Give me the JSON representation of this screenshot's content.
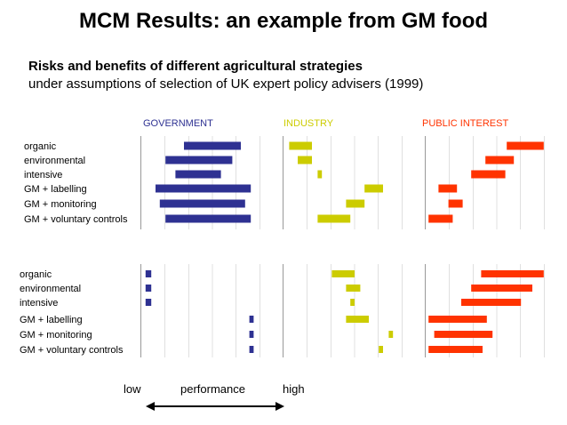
{
  "title": "MCM Results: an example from GM food",
  "subtitle": "Risks and benefits of different agricultural strategies",
  "subtitle2": "under assumptions of selection of UK expert policy advisers (1999)",
  "axis": {
    "low": "low",
    "middle": "performance",
    "high": "high"
  },
  "colors": {
    "government": "#2e3192",
    "industry": "#cccc00",
    "public_interest": "#ff3300",
    "grid": "#cccccc",
    "divider": "#999999"
  },
  "chart_data": {
    "type": "bar",
    "orientation": "horizontal-range",
    "title": "MCM Results: an example from GM food",
    "xlabel": "performance (low → high)",
    "xlim": [
      0,
      1
    ],
    "groups": [
      "GOVERNMENT",
      "INDUSTRY",
      "PUBLIC INTEREST"
    ],
    "categories": [
      "organic",
      "environmental",
      "intensive",
      "GM + labelling",
      "GM + monitoring",
      "GM + voluntary controls"
    ],
    "panels": [
      {
        "name": "panel-top",
        "series": [
          {
            "name": "GOVERNMENT",
            "ranges": [
              [
                0.3,
                0.7
              ],
              [
                0.17,
                0.64
              ],
              [
                0.24,
                0.56
              ],
              [
                0.1,
                0.77
              ],
              [
                0.13,
                0.73
              ],
              [
                0.17,
                0.77
              ]
            ]
          },
          {
            "name": "INDUSTRY",
            "ranges": [
              [
                0.04,
                0.2
              ],
              [
                0.1,
                0.2
              ],
              [
                0.24,
                0.27
              ],
              [
                0.57,
                0.7
              ],
              [
                0.44,
                0.57
              ],
              [
                0.24,
                0.47
              ]
            ]
          },
          {
            "name": "PUBLIC INTEREST",
            "ranges": [
              [
                0.57,
                0.83
              ],
              [
                0.42,
                0.62
              ],
              [
                0.32,
                0.56
              ],
              [
                0.09,
                0.22
              ],
              [
                0.16,
                0.26
              ],
              [
                0.02,
                0.19
              ]
            ]
          }
        ]
      },
      {
        "name": "panel-bottom",
        "series": [
          {
            "name": "GOVERNMENT",
            "ranges": [
              [
                0.03,
                0.07
              ],
              [
                0.03,
                0.07
              ],
              [
                0.03,
                0.07
              ],
              [
                0.76,
                0.79
              ],
              [
                0.76,
                0.79
              ],
              [
                0.76,
                0.79
              ]
            ]
          },
          {
            "name": "INDUSTRY",
            "ranges": [
              [
                0.34,
                0.5
              ],
              [
                0.44,
                0.54
              ],
              [
                0.47,
                0.5
              ],
              [
                0.44,
                0.6
              ],
              [
                0.74,
                0.77
              ],
              [
                0.67,
                0.7
              ]
            ]
          },
          {
            "name": "PUBLIC INTEREST",
            "ranges": [
              [
                0.39,
                0.83
              ],
              [
                0.32,
                0.75
              ],
              [
                0.25,
                0.67
              ],
              [
                0.02,
                0.43
              ],
              [
                0.06,
                0.47
              ],
              [
                0.02,
                0.4
              ]
            ]
          }
        ]
      }
    ]
  }
}
